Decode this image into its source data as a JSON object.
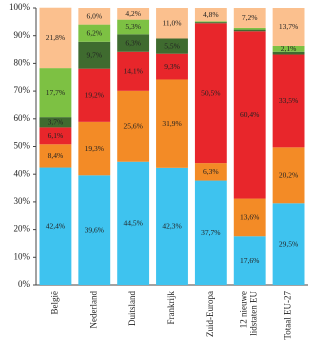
{
  "chart_data": {
    "type": "stacked_bar",
    "categories": [
      "België",
      "Nederland",
      "Duitsland",
      "Frankrijk",
      "Zuid-Europa",
      "12 nieuwe lidstaten EU",
      "Totaal EU-27"
    ],
    "series": [
      {
        "color": "#3ec3ef",
        "values": [
          42.4,
          39.6,
          44.5,
          42.3,
          37.7,
          17.6,
          29.5
        ],
        "value_labels": [
          "42,4%",
          "39,6%",
          "44,5%",
          "42,3%",
          "37,7%",
          "17,6%",
          "29,5%"
        ]
      },
      {
        "color": "#f38b26",
        "values": [
          8.4,
          19.3,
          25.6,
          31.9,
          6.3,
          13.6,
          20.2
        ],
        "value_labels": [
          "8,4%",
          "19,3%",
          "25,6%",
          "31,9%",
          "6,3%",
          "13,6%",
          "20,2%"
        ]
      },
      {
        "color": "#e8262b",
        "values": [
          6.1,
          19.2,
          14.1,
          9.3,
          50.5,
          60.4,
          33.5
        ],
        "value_labels": [
          "6,1%",
          "19,2%",
          "14,1%",
          "9,3%",
          "50,5%",
          "60,4%",
          "33,5%"
        ]
      },
      {
        "color": "#3f6b2f",
        "values": [
          3.7,
          9.7,
          6.3,
          5.5,
          0.4,
          0.6,
          1.0
        ],
        "value_labels": [
          "3,7%",
          "9,7%",
          "6,3%",
          "5,5%",
          null,
          null,
          null
        ]
      },
      {
        "color": "#7dc143",
        "values": [
          17.7,
          6.2,
          5.3,
          0,
          0.3,
          0.6,
          2.1
        ],
        "value_labels": [
          "17,7%",
          "6,2%",
          "5,3%",
          null,
          null,
          null,
          "2,1%"
        ]
      },
      {
        "color": "#fbc08e",
        "values": [
          21.8,
          6.0,
          4.2,
          11.0,
          4.8,
          7.2,
          13.7
        ],
        "value_labels": [
          "21,8%",
          "6,0%",
          "4,2%",
          "11,0%",
          "4,8%",
          "7,2%",
          "13,7%"
        ]
      }
    ],
    "ylim": [
      0,
      100
    ],
    "yticks": [
      {
        "value": 0,
        "label": "0%"
      },
      {
        "value": 10,
        "label": "10%"
      },
      {
        "value": 20,
        "label": "20%"
      },
      {
        "value": 30,
        "label": "30%"
      },
      {
        "value": 40,
        "label": "40%"
      },
      {
        "value": 50,
        "label": "50%"
      },
      {
        "value": 60,
        "label": "60%"
      },
      {
        "value": 70,
        "label": "70%"
      },
      {
        "value": 80,
        "label": "80%"
      },
      {
        "value": 90,
        "label": "90%"
      },
      {
        "value": 100,
        "label": "100%"
      }
    ]
  }
}
